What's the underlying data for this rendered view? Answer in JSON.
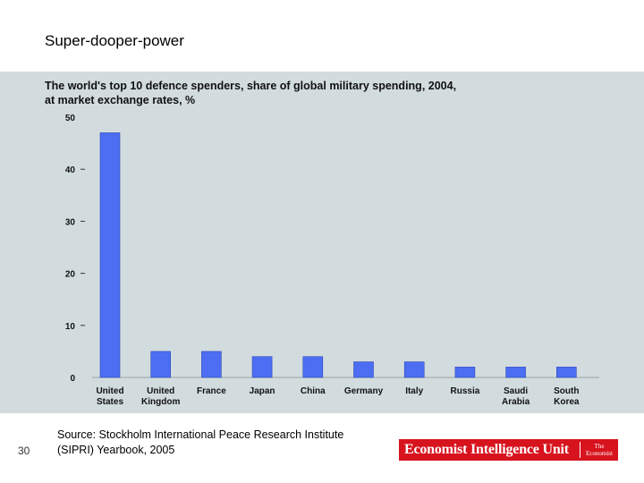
{
  "slide": {
    "title": "Super-dooper-power",
    "page_number": "30",
    "source_line1": "Source: Stockholm International Peace Research Institute",
    "source_line2": "(SIPRI) Yearbook, 2005",
    "logo_text": "Economist Intelligence Unit",
    "logo_small_line1": "The",
    "logo_small_line2": "Economist"
  },
  "colors": {
    "bar": "#4d6ef2",
    "bar_stroke": "#2c46b8",
    "panel": "#d2dcde",
    "logo": "#d7131e"
  },
  "chart_data": {
    "type": "bar",
    "title": "The world's top 10 defence spenders, share of global military spending, 2004,",
    "subtitle": "at market exchange rates, %",
    "xlabel": "",
    "ylabel": "",
    "ylim": [
      0,
      50
    ],
    "yticks": [
      0,
      10,
      20,
      30,
      40,
      50
    ],
    "grid": false,
    "categories": [
      [
        "United",
        "States"
      ],
      [
        "United",
        "Kingdom"
      ],
      [
        "France"
      ],
      [
        "Japan"
      ],
      [
        "China"
      ],
      [
        "Germany"
      ],
      [
        "Italy"
      ],
      [
        "Russia"
      ],
      [
        "Saudi",
        "Arabia"
      ],
      [
        "South",
        "Korea"
      ]
    ],
    "values": [
      47,
      5,
      5,
      4,
      4,
      3,
      3,
      2,
      2,
      2
    ]
  }
}
